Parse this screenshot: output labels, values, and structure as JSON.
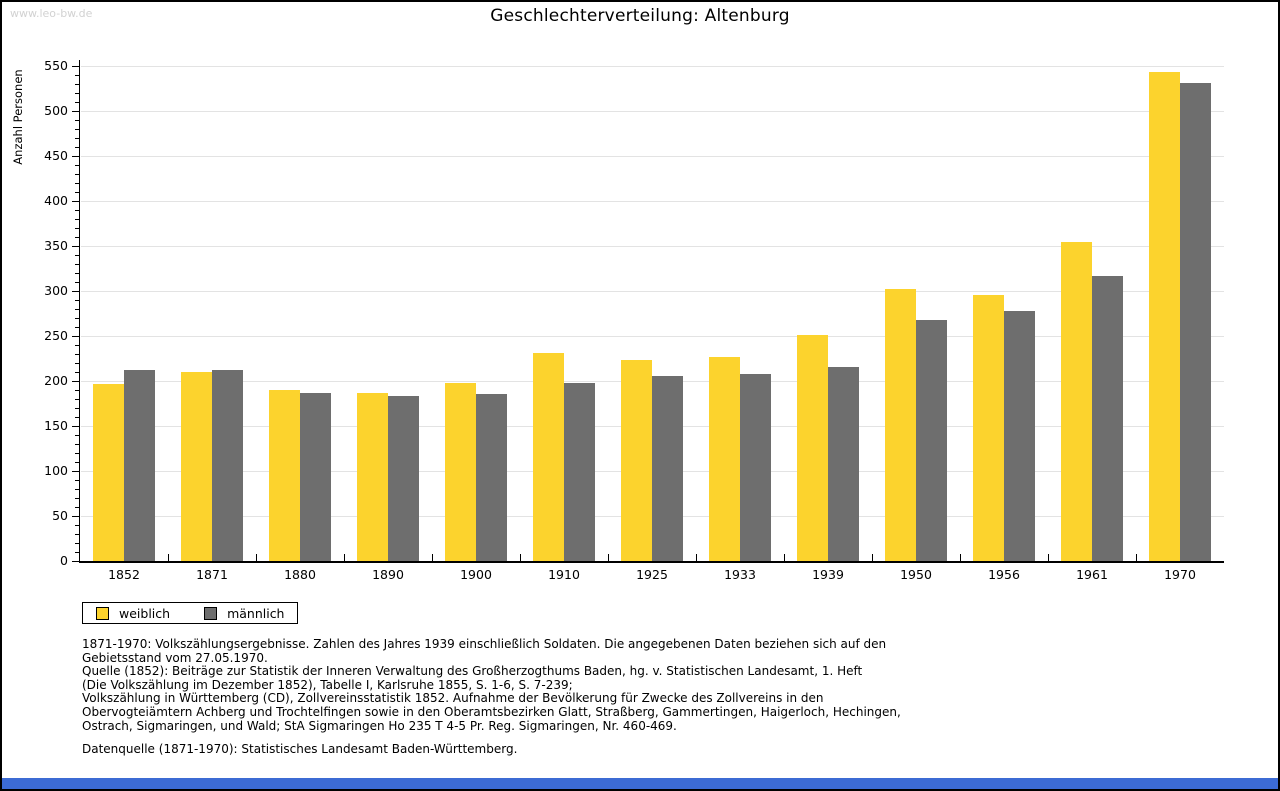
{
  "watermark": "www.leo-bw.de",
  "title": "Geschlechterverteilung: Altenburg",
  "chart_data": {
    "type": "bar",
    "title": "Geschlechterverteilung: Altenburg",
    "xlabel": "",
    "ylabel": "Anzahl Personen",
    "ylim": [
      0,
      550
    ],
    "ytick_step": 50,
    "ytick_minor_step": 10,
    "grid": true,
    "legend_position": "bottom-left",
    "categories": [
      "1852",
      "1871",
      "1880",
      "1890",
      "1900",
      "1910",
      "1925",
      "1933",
      "1939",
      "1950",
      "1956",
      "1961",
      "1970"
    ],
    "series": [
      {
        "name": "weiblich",
        "color": "#fcd32d",
        "values": [
          197,
          210,
          190,
          187,
          198,
          231,
          223,
          227,
          251,
          302,
          295,
          354,
          543
        ]
      },
      {
        "name": "männlich",
        "color": "#6e6e6e",
        "values": [
          212,
          212,
          187,
          183,
          185,
          198,
          205,
          208,
          215,
          268,
          278,
          317,
          531
        ]
      }
    ]
  },
  "footer": {
    "lines": [
      "1871-1970: Volkszählungsergebnisse. Zahlen des Jahres 1939 einschließlich Soldaten. Die angegebenen Daten beziehen sich auf den",
      "Gebietsstand vom 27.05.1970.",
      "Quelle (1852): Beiträge zur Statistik der Inneren Verwaltung des Großherzogthums Baden, hg. v. Statistischen Landesamt, 1. Heft",
      "(Die Volkszählung im Dezember 1852), Tabelle I, Karlsruhe 1855, S. 1-6, S. 7-239;",
      "Volkszählung in Württemberg (CD), Zollvereinsstatistik 1852. Aufnahme der Bevölkerung für Zwecke des Zollvereins in den",
      "Obervogteiämtern Achberg und Trochtelfingen sowie in den Oberamtsbezirken Glatt, Straßberg, Gammertingen, Haigerloch, Hechingen,",
      "Ostrach, Sigmaringen, und Wald; StA Sigmaringen Ho 235 T 4-5 Pr. Reg. Sigmaringen, Nr. 460-469."
    ],
    "datasource": "Datenquelle (1871-1970): Statistisches Landesamt Baden-Württemberg."
  },
  "colors": {
    "female": "#fcd32d",
    "male": "#6e6e6e",
    "grid": "#e3e3e3",
    "axis": "#000000",
    "watermark": "#d2d2d2",
    "bottom_bar_blue": "#3c6bd4"
  }
}
